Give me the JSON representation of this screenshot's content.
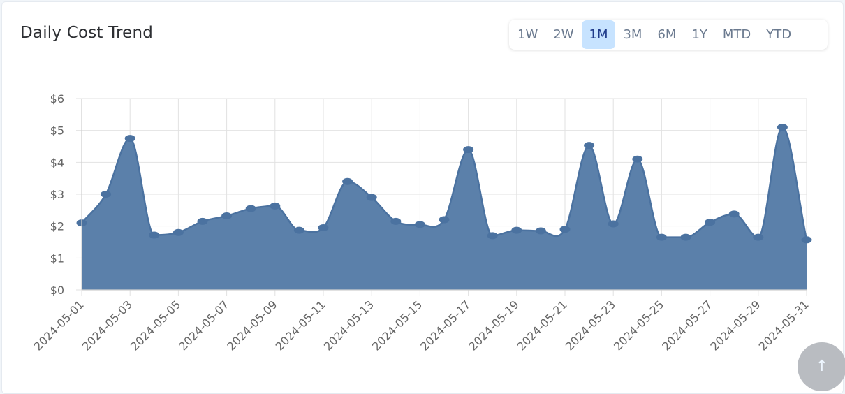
{
  "card": {
    "title": "Daily Cost Trend",
    "ranges": [
      "1W",
      "2W",
      "1M",
      "3M",
      "6M",
      "1Y",
      "MTD",
      "YTD"
    ],
    "active_range": "1M"
  },
  "scroll_top_icon": "arrow-up-icon",
  "colors": {
    "fill": "#5b80aa",
    "line": "#4b72a0",
    "active_range_bg": "#c7e3ff"
  },
  "chart_data": {
    "type": "area",
    "title": "",
    "xlabel": "",
    "ylabel": "",
    "ylim": [
      0,
      6
    ],
    "y_ticks": [
      "$0",
      "$1",
      "$2",
      "$3",
      "$4",
      "$5",
      "$6"
    ],
    "x": [
      "2024-05-01",
      "2024-05-02",
      "2024-05-03",
      "2024-05-04",
      "2024-05-05",
      "2024-05-06",
      "2024-05-07",
      "2024-05-08",
      "2024-05-09",
      "2024-05-10",
      "2024-05-11",
      "2024-05-12",
      "2024-05-13",
      "2024-05-14",
      "2024-05-15",
      "2024-05-16",
      "2024-05-17",
      "2024-05-18",
      "2024-05-19",
      "2024-05-20",
      "2024-05-21",
      "2024-05-22",
      "2024-05-23",
      "2024-05-24",
      "2024-05-25",
      "2024-05-26",
      "2024-05-27",
      "2024-05-28",
      "2024-05-29",
      "2024-05-30",
      "2024-05-31"
    ],
    "x_tick_labels": [
      "2024-05-01",
      "2024-05-03",
      "2024-05-05",
      "2024-05-07",
      "2024-05-09",
      "2024-05-11",
      "2024-05-13",
      "2024-05-15",
      "2024-05-17",
      "2024-05-19",
      "2024-05-21",
      "2024-05-23",
      "2024-05-25",
      "2024-05-27",
      "2024-05-29",
      "2024-05-31"
    ],
    "values": [
      2.1,
      3.0,
      4.75,
      1.72,
      1.8,
      2.15,
      2.32,
      2.55,
      2.63,
      1.87,
      1.95,
      3.4,
      2.9,
      2.15,
      2.05,
      2.2,
      4.4,
      1.7,
      1.87,
      1.85,
      1.9,
      4.53,
      2.07,
      4.1,
      1.65,
      1.65,
      2.12,
      2.38,
      1.65,
      5.1,
      1.57
    ],
    "grid": true,
    "legend": "none"
  }
}
